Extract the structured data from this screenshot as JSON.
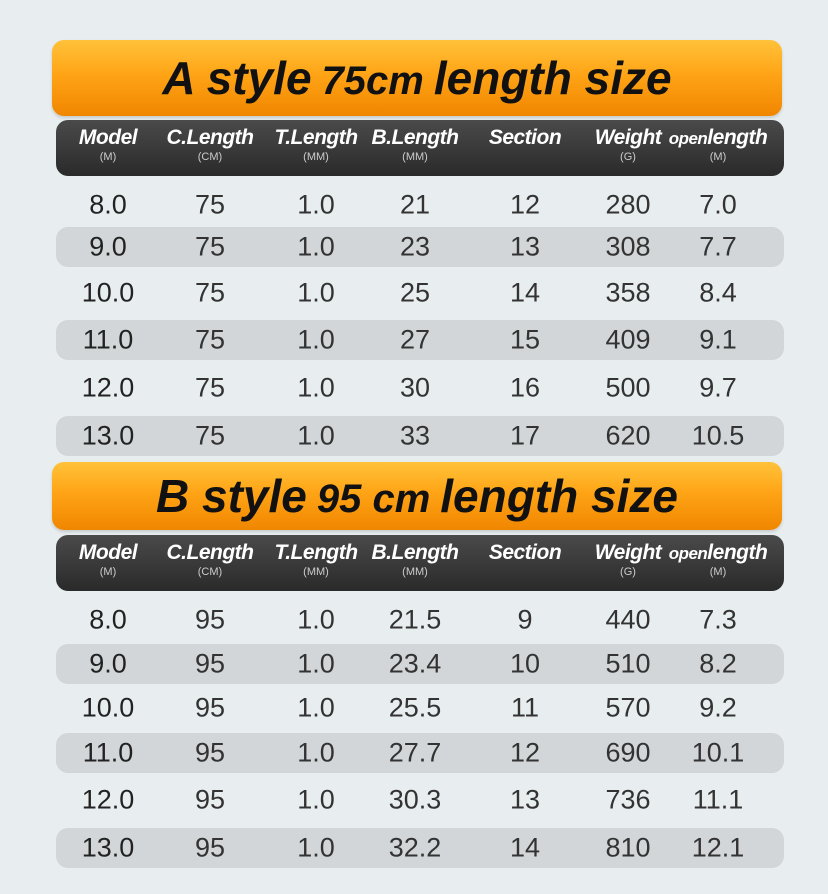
{
  "tables": [
    {
      "title_prefix": "A style",
      "title_size": "75cm",
      "title_suffix": "length size",
      "headers": [
        {
          "label": "Model",
          "unit": "(M)"
        },
        {
          "label": "C.Length",
          "unit": "(CM)"
        },
        {
          "label": "T.Length",
          "unit": "(MM)"
        },
        {
          "label": "B.Length",
          "unit": "(MM)"
        },
        {
          "label": "Section",
          "unit": ""
        },
        {
          "label": "Weight",
          "unit": "(G)"
        },
        {
          "label_small": "open",
          "label": "length",
          "unit": "(M)"
        }
      ],
      "rows": [
        [
          "8.0",
          "75",
          "1.0",
          "21",
          "12",
          "280",
          "7.0"
        ],
        [
          "9.0",
          "75",
          "1.0",
          "23",
          "13",
          "308",
          "7.7"
        ],
        [
          "10.0",
          "75",
          "1.0",
          "25",
          "14",
          "358",
          "8.4"
        ],
        [
          "11.0",
          "75",
          "1.0",
          "27",
          "15",
          "409",
          "9.1"
        ],
        [
          "12.0",
          "75",
          "1.0",
          "30",
          "16",
          "500",
          "9.7"
        ],
        [
          "13.0",
          "75",
          "1.0",
          "33",
          "17",
          "620",
          "10.5"
        ]
      ]
    },
    {
      "title_prefix": "B style",
      "title_size": "95 cm",
      "title_suffix": "length size",
      "headers": [
        {
          "label": "Model",
          "unit": "(M)"
        },
        {
          "label": "C.Length",
          "unit": "(CM)"
        },
        {
          "label": "T.Length",
          "unit": "(MM)"
        },
        {
          "label": "B.Length",
          "unit": "(MM)"
        },
        {
          "label": "Section",
          "unit": ""
        },
        {
          "label": "Weight",
          "unit": "(G)"
        },
        {
          "label_small": "open",
          "label": "length",
          "unit": "(M)"
        }
      ],
      "rows": [
        [
          "8.0",
          "95",
          "1.0",
          "21.5",
          "9",
          "440",
          "7.3"
        ],
        [
          "9.0",
          "95",
          "1.0",
          "23.4",
          "10",
          "510",
          "8.2"
        ],
        [
          "10.0",
          "95",
          "1.0",
          "25.5",
          "11",
          "570",
          "9.2"
        ],
        [
          "11.0",
          "95",
          "1.0",
          "27.7",
          "12",
          "690",
          "10.1"
        ],
        [
          "12.0",
          "95",
          "1.0",
          "30.3",
          "13",
          "736",
          "11.1"
        ],
        [
          "13.0",
          "95",
          "1.0",
          "32.2",
          "14",
          "810",
          "12.1"
        ]
      ]
    }
  ],
  "colors": {
    "banner": "#ffa416",
    "header": "#333333",
    "stripe": "#d2d6d8",
    "background": "#e8eef0"
  }
}
